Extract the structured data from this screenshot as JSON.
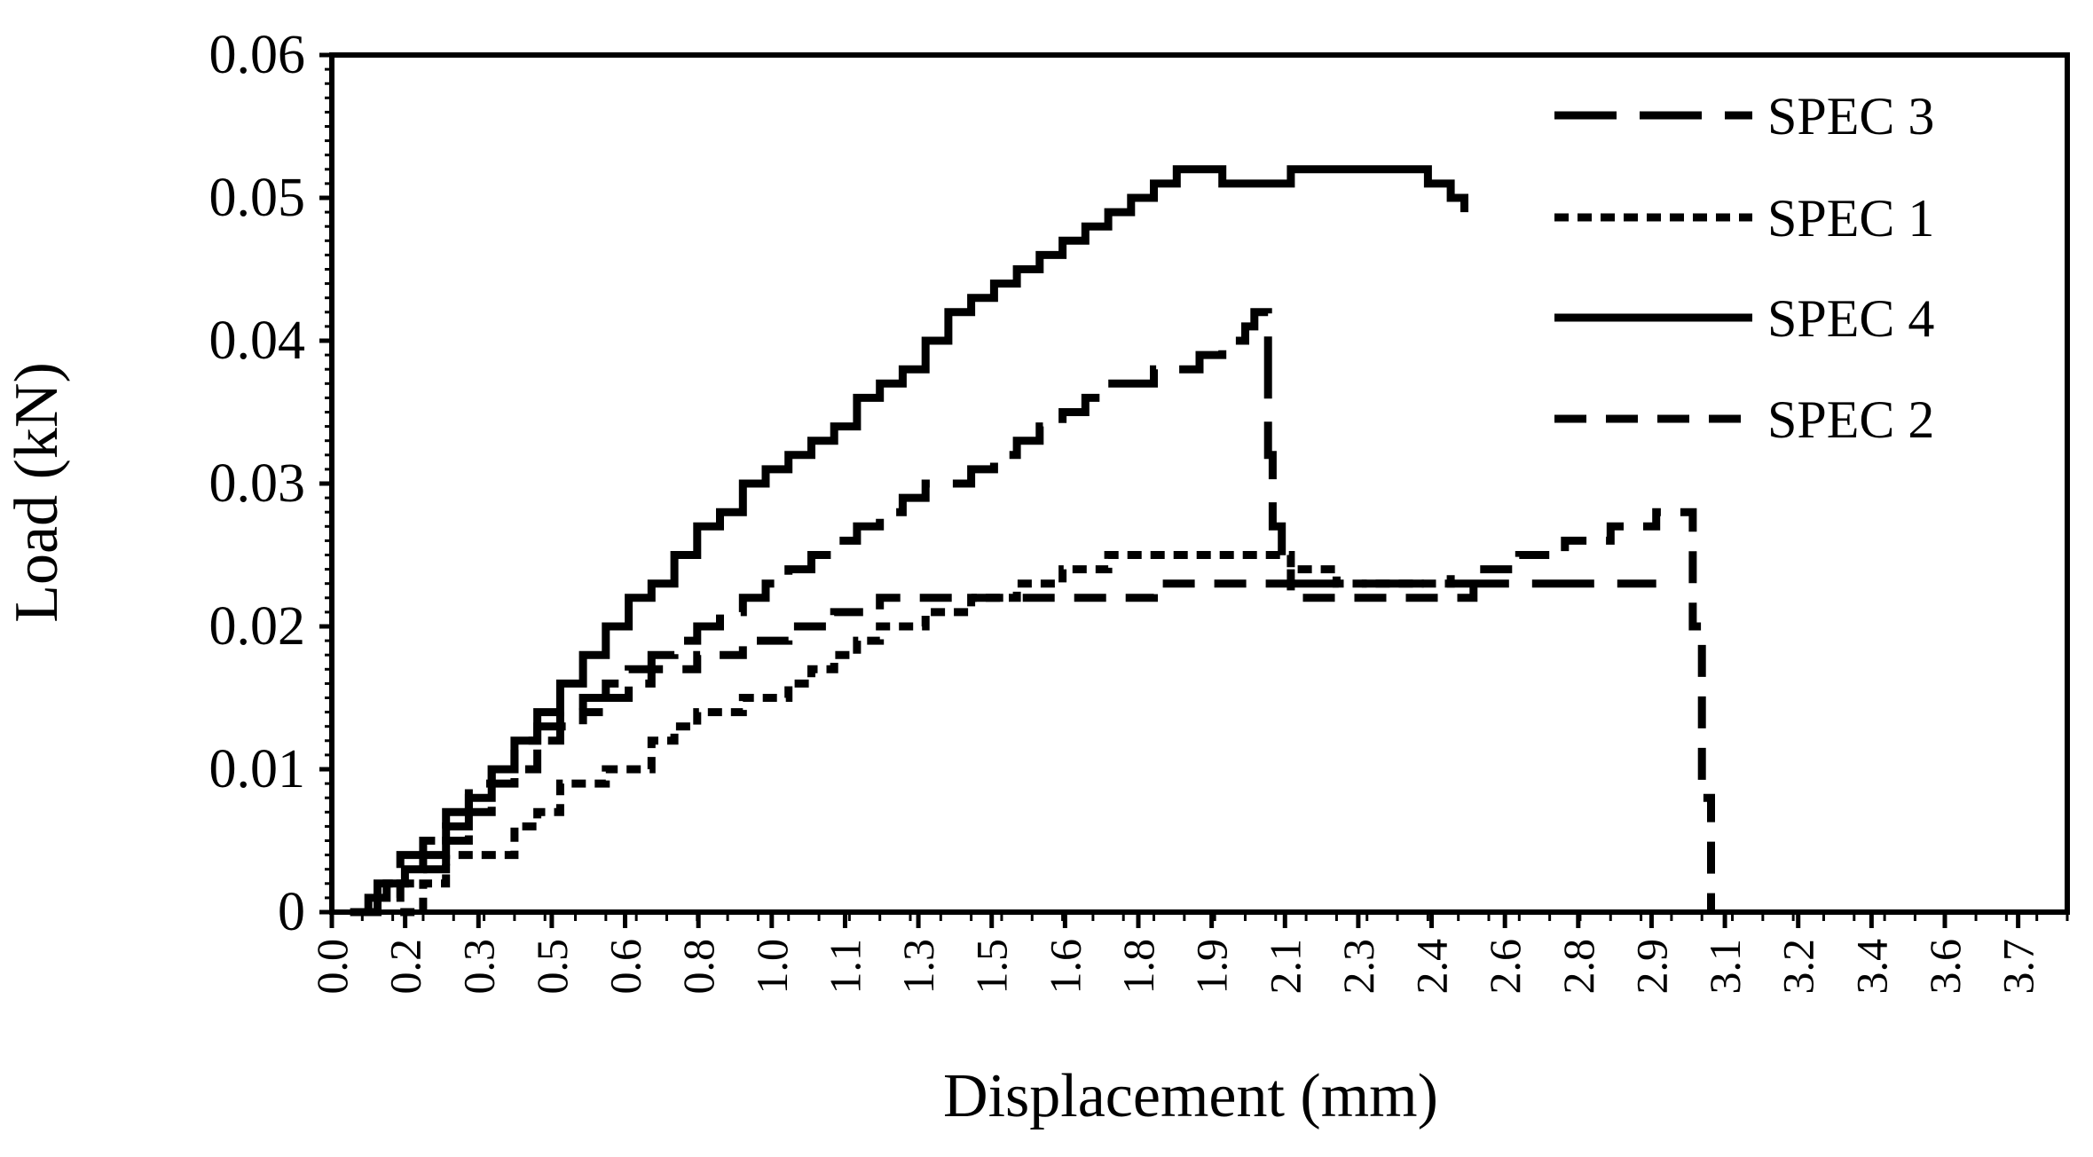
{
  "chart_data": {
    "type": "line",
    "title": "",
    "xlabel": "Displacement (mm)",
    "ylabel": "Load (kN)",
    "xlim": [
      0,
      3.8
    ],
    "ylim": [
      0,
      0.06
    ],
    "y_ticks": [
      "0",
      "0.01",
      "0.02",
      "0.03",
      "0.04",
      "0.05",
      "0.06"
    ],
    "x_ticks": [
      "0.0",
      "0.2",
      "0.3",
      "0.5",
      "0.6",
      "0.8",
      "1.0",
      "1.1",
      "1.3",
      "1.5",
      "1.6",
      "1.8",
      "1.9",
      "2.1",
      "2.3",
      "2.4",
      "2.6",
      "2.8",
      "2.9",
      "3.1",
      "3.2",
      "3.4",
      "3.6",
      "3.7"
    ],
    "grid": false,
    "legend_position": "top-right",
    "series": [
      {
        "name": "SPEC 3",
        "dash": "long-dash",
        "x": [
          0.06,
          0.1,
          0.15,
          0.2,
          0.25,
          0.3,
          0.35,
          0.4,
          0.45,
          0.5,
          0.55,
          0.6,
          0.65,
          0.7,
          0.75,
          0.8,
          0.85,
          0.9,
          0.95,
          1.0,
          1.05,
          1.1,
          1.15,
          1.2,
          1.25,
          1.3,
          1.4,
          1.45,
          1.5,
          1.55,
          1.6,
          1.65,
          1.7,
          1.8,
          1.9,
          1.95,
          2.0,
          2.02,
          2.05,
          2.06,
          2.08,
          2.1,
          2.2,
          2.3,
          2.4,
          2.5,
          2.6,
          2.7,
          2.8,
          2.9
        ],
        "y": [
          0.0,
          0.002,
          0.004,
          0.005,
          0.007,
          0.009,
          0.01,
          0.012,
          0.013,
          0.014,
          0.015,
          0.016,
          0.017,
          0.018,
          0.019,
          0.02,
          0.021,
          0.022,
          0.023,
          0.024,
          0.025,
          0.026,
          0.027,
          0.028,
          0.029,
          0.03,
          0.031,
          0.032,
          0.033,
          0.034,
          0.035,
          0.036,
          0.037,
          0.038,
          0.039,
          0.04,
          0.041,
          0.042,
          0.032,
          0.027,
          0.024,
          0.023,
          0.023,
          0.023,
          0.023,
          0.023,
          0.023,
          0.023,
          0.023,
          0.023
        ]
      },
      {
        "name": "SPEC 1",
        "dash": "short-dash",
        "x": [
          0.15,
          0.2,
          0.25,
          0.3,
          0.4,
          0.45,
          0.5,
          0.6,
          0.7,
          0.75,
          0.8,
          0.9,
          1.0,
          1.05,
          1.1,
          1.15,
          1.2,
          1.3,
          1.4,
          1.5,
          1.6,
          1.7,
          1.8,
          1.9,
          2.0,
          2.1,
          2.2,
          2.3,
          2.4,
          2.45
        ],
        "y": [
          0.0,
          0.002,
          0.004,
          0.004,
          0.006,
          0.007,
          0.009,
          0.01,
          0.012,
          0.013,
          0.014,
          0.015,
          0.016,
          0.017,
          0.018,
          0.019,
          0.02,
          0.021,
          0.022,
          0.023,
          0.024,
          0.025,
          0.025,
          0.025,
          0.025,
          0.024,
          0.023,
          0.023,
          0.023,
          0.024
        ]
      },
      {
        "name": "SPEC 4",
        "dash": "solid",
        "x": [
          0.04,
          0.08,
          0.12,
          0.16,
          0.2,
          0.25,
          0.3,
          0.35,
          0.4,
          0.45,
          0.5,
          0.55,
          0.6,
          0.65,
          0.7,
          0.75,
          0.8,
          0.85,
          0.9,
          0.95,
          1.0,
          1.05,
          1.1,
          1.15,
          1.2,
          1.25,
          1.3,
          1.35,
          1.4,
          1.45,
          1.5,
          1.55,
          1.6,
          1.65,
          1.7,
          1.75,
          1.8,
          1.85,
          1.9,
          1.95,
          2.0,
          2.05,
          2.1,
          2.15,
          2.2,
          2.25,
          2.3,
          2.35,
          2.4,
          2.45,
          2.48
        ],
        "y": [
          0.0,
          0.001,
          0.002,
          0.003,
          0.004,
          0.006,
          0.008,
          0.01,
          0.012,
          0.014,
          0.016,
          0.018,
          0.02,
          0.022,
          0.023,
          0.025,
          0.027,
          0.028,
          0.03,
          0.031,
          0.032,
          0.033,
          0.034,
          0.036,
          0.037,
          0.038,
          0.04,
          0.042,
          0.043,
          0.044,
          0.045,
          0.046,
          0.047,
          0.048,
          0.049,
          0.05,
          0.051,
          0.052,
          0.052,
          0.051,
          0.051,
          0.051,
          0.052,
          0.052,
          0.052,
          0.052,
          0.052,
          0.052,
          0.051,
          0.05,
          0.049
        ]
      },
      {
        "name": "SPEC 2",
        "dash": "medium-dash",
        "x": [
          0.06,
          0.1,
          0.15,
          0.2,
          0.25,
          0.3,
          0.35,
          0.4,
          0.45,
          0.5,
          0.55,
          0.6,
          0.65,
          0.7,
          0.8,
          0.9,
          1.0,
          1.1,
          1.2,
          1.3,
          1.4,
          1.5,
          1.6,
          1.7,
          1.8,
          1.9,
          2.0,
          2.05,
          2.1,
          2.2,
          2.3,
          2.4,
          2.5,
          2.6,
          2.7,
          2.8,
          2.9,
          2.95,
          2.98,
          3.0,
          3.02
        ],
        "y": [
          0.0,
          0.001,
          0.002,
          0.003,
          0.005,
          0.007,
          0.009,
          0.01,
          0.012,
          0.013,
          0.014,
          0.015,
          0.016,
          0.017,
          0.018,
          0.019,
          0.02,
          0.021,
          0.022,
          0.022,
          0.022,
          0.022,
          0.022,
          0.022,
          0.023,
          0.023,
          0.023,
          0.023,
          0.022,
          0.022,
          0.022,
          0.022,
          0.024,
          0.025,
          0.026,
          0.027,
          0.028,
          0.028,
          0.02,
          0.008,
          0.0
        ]
      }
    ]
  }
}
